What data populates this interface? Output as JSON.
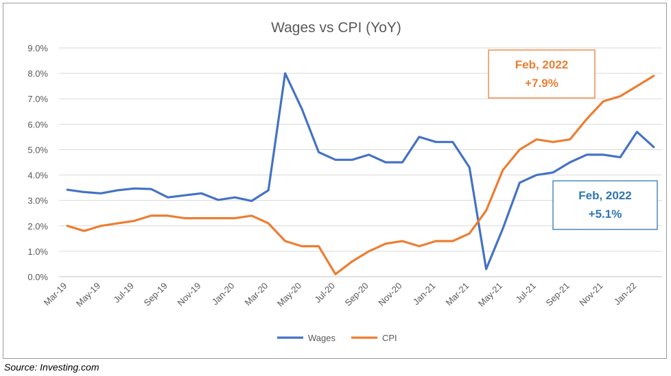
{
  "chart_data": {
    "type": "line",
    "title": "Wages vs CPI (YoY)",
    "xlabel": "",
    "ylabel": "",
    "ylim": [
      0,
      9
    ],
    "y_ticks": [
      "0.0%",
      "1.0%",
      "2.0%",
      "3.0%",
      "4.0%",
      "5.0%",
      "6.0%",
      "7.0%",
      "8.0%",
      "9.0%"
    ],
    "x": [
      "Mar-19",
      "Apr-19",
      "May-19",
      "Jun-19",
      "Jul-19",
      "Aug-19",
      "Sep-19",
      "Oct-19",
      "Nov-19",
      "Dec-19",
      "Jan-20",
      "Feb-20",
      "Mar-20",
      "Apr-20",
      "May-20",
      "Jun-20",
      "Jul-20",
      "Aug-20",
      "Sep-20",
      "Oct-20",
      "Nov-20",
      "Dec-20",
      "Jan-21",
      "Feb-21",
      "Mar-21",
      "Apr-21",
      "May-21",
      "Jun-21",
      "Jul-21",
      "Aug-21",
      "Sep-21",
      "Oct-21",
      "Nov-21",
      "Dec-21",
      "Jan-22",
      "Feb-22"
    ],
    "x_tick_labels": [
      "Mar-19",
      "May-19",
      "Jul-19",
      "Sep-19",
      "Nov-19",
      "Jan-20",
      "Mar-20",
      "May-20",
      "Jul-20",
      "Sep-20",
      "Nov-20",
      "Jan-21",
      "Mar-21",
      "May-21",
      "Jul-21",
      "Sep-21",
      "Nov-21",
      "Jan-22"
    ],
    "grid": "horizontal",
    "legend_position": "bottom",
    "series": [
      {
        "name": "Wages",
        "color": "#4472c4",
        "values": [
          3.42,
          3.33,
          3.28,
          3.4,
          3.47,
          3.45,
          3.12,
          3.2,
          3.28,
          3.02,
          3.12,
          2.98,
          3.4,
          8.0,
          6.6,
          4.9,
          4.6,
          4.6,
          4.8,
          4.5,
          4.5,
          5.5,
          5.3,
          5.3,
          4.3,
          0.3,
          1.9,
          3.7,
          4.0,
          4.1,
          4.5,
          4.8,
          4.8,
          4.7,
          5.7,
          5.1
        ]
      },
      {
        "name": "CPI",
        "color": "#ed7d31",
        "values": [
          2.0,
          1.8,
          2.0,
          2.1,
          2.2,
          2.4,
          2.4,
          2.3,
          2.3,
          2.3,
          2.3,
          2.4,
          2.1,
          1.4,
          1.2,
          1.2,
          0.1,
          0.6,
          1.0,
          1.3,
          1.4,
          1.2,
          1.4,
          1.4,
          1.7,
          2.6,
          4.2,
          5.0,
          5.4,
          5.3,
          5.4,
          6.2,
          6.9,
          7.1,
          7.5,
          7.9
        ]
      }
    ],
    "annotations": [
      {
        "series": "CPI",
        "line1": "Feb, 2022",
        "line2": "+7.9%",
        "color": "#ed7d31"
      },
      {
        "series": "Wages",
        "line1": "Feb, 2022",
        "line2": "+5.1%",
        "color": "#2e75b6"
      }
    ]
  },
  "source_note": "Source:  Investing.com"
}
